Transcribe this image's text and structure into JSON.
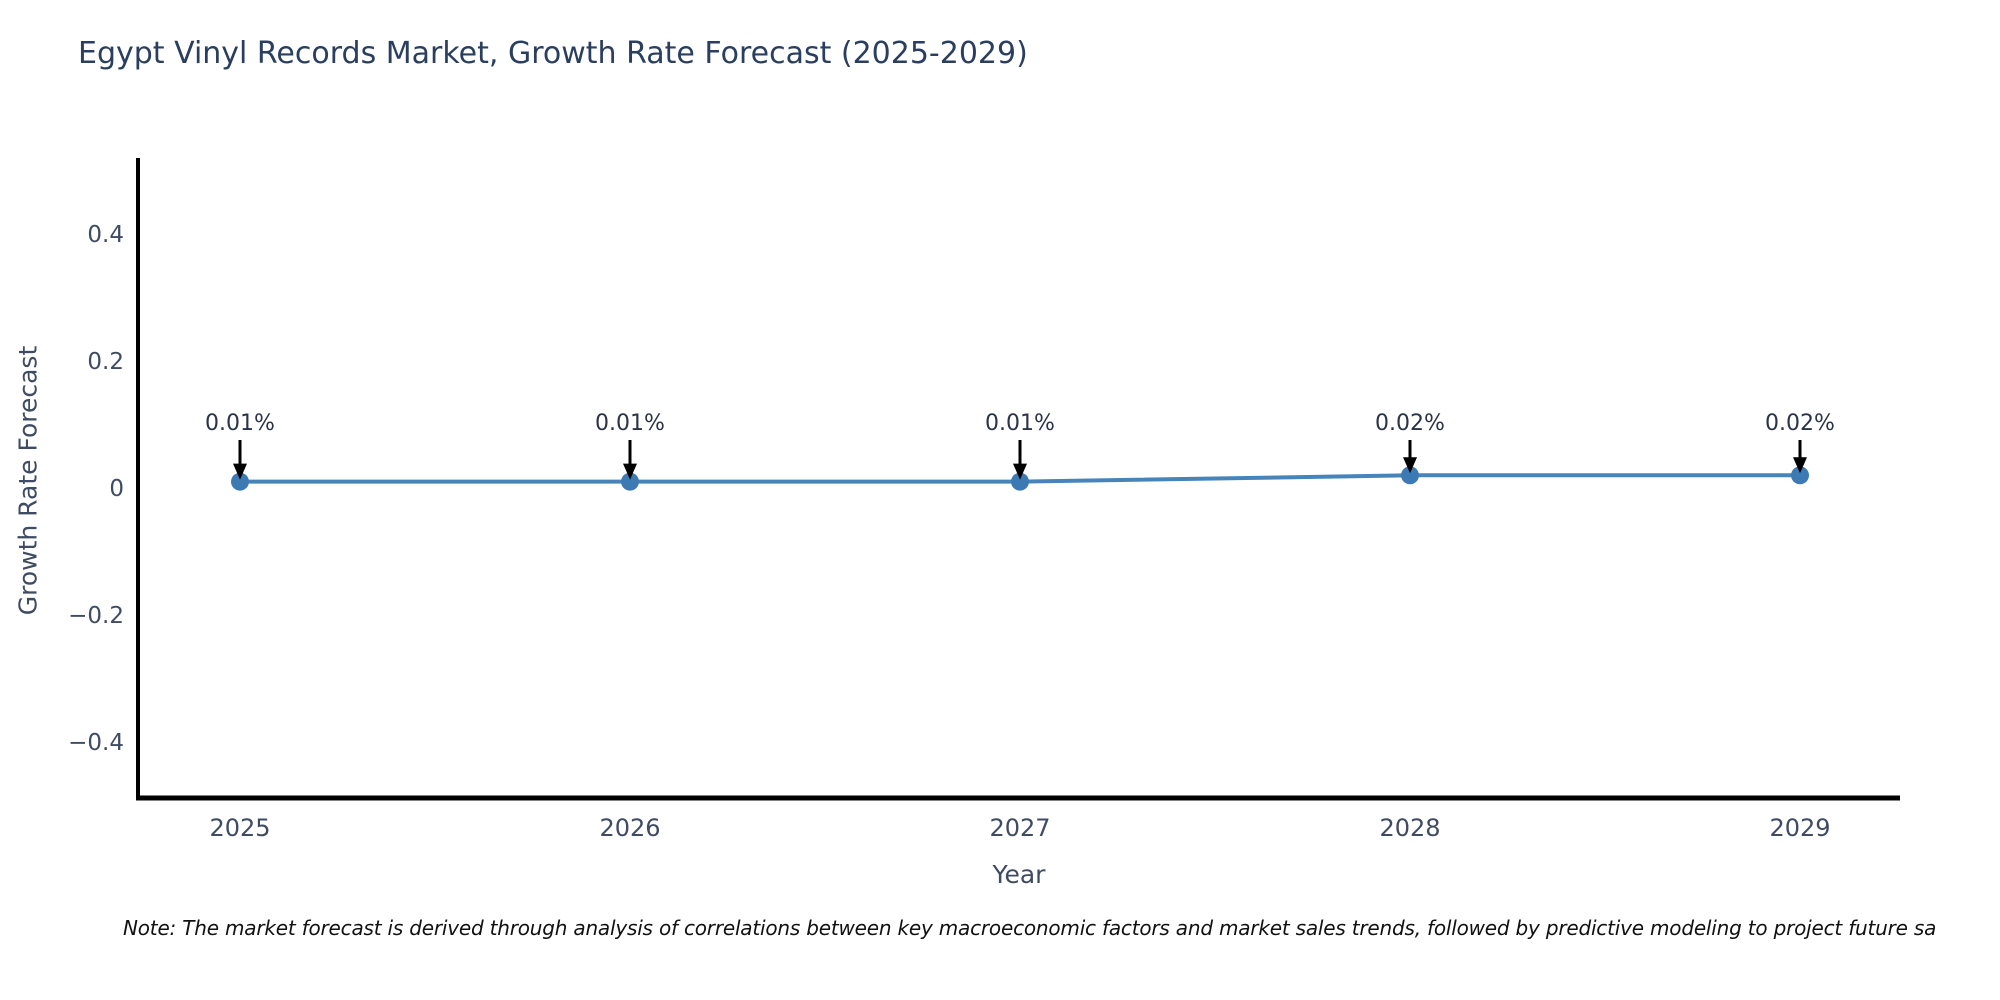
{
  "chart": {
    "title": "Egypt Vinyl Records Market, Growth Rate Forecast (2025-2029)",
    "xlabel": "Year",
    "ylabel": "Growth Rate Forecast",
    "note": "Note: The market forecast is derived through analysis of correlations between key macroeconomic factors and market sales trends, followed by predictive modeling to project future sa"
  },
  "chart_data": {
    "type": "line",
    "title": "Egypt Vinyl Records Market, Growth Rate Forecast (2025-2029)",
    "xlabel": "Year",
    "ylabel": "Growth Rate Forecast",
    "x": [
      2025,
      2026,
      2027,
      2028,
      2029
    ],
    "series": [
      {
        "name": "Growth Rate Forecast",
        "values": [
          0.01,
          0.01,
          0.01,
          0.02,
          0.02
        ]
      }
    ],
    "point_labels": [
      "0.01%",
      "0.01%",
      "0.01%",
      "0.02%",
      "0.02%"
    ],
    "yticks": [
      0.4,
      0.2,
      0,
      -0.2,
      -0.4
    ],
    "ytick_labels": [
      "0.4",
      "0.2",
      "0",
      "−0.2",
      "−0.4"
    ],
    "ylim": [
      -0.5,
      0.52
    ],
    "grid": false,
    "legend_position": "none",
    "note": "Note: The market forecast is derived through analysis of correlations between key macroeconomic factors and market sales trends, followed by predictive modeling to project future sa",
    "colors": {
      "line": "#4784ba",
      "marker": "#3d79b3",
      "spine": "#000000",
      "title_text": "#2a3f5f",
      "axis_text": "#3f4a63",
      "annotation_text": "#2a3348",
      "arrow": "#000000",
      "background": "#ffffff"
    }
  }
}
